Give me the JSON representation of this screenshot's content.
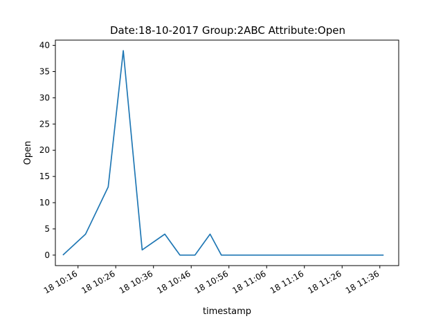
{
  "chart_data": {
    "type": "line",
    "title": "Date:18-10-2017  Group:2ABC Attribute:Open",
    "xlabel": "timestamp",
    "ylabel": "Open",
    "x_ticks": [
      "18 10:16",
      "18 10:26",
      "18 10:36",
      "18 10:46",
      "18 10:56",
      "18 11:06",
      "18 11:16",
      "18 11:26",
      "18 11:36"
    ],
    "y_ticks": [
      "0",
      "5",
      "10",
      "15",
      "20",
      "25",
      "30",
      "35",
      "40"
    ],
    "ylim": [
      -2,
      41
    ],
    "xlim": [
      "2017-10-18 10:10",
      "2017-10-18 11:41"
    ],
    "grid": false,
    "series_color": "#1f77b4",
    "x": [
      "2017-10-18 10:12",
      "2017-10-18 10:18",
      "2017-10-18 10:24",
      "2017-10-18 10:28",
      "2017-10-18 10:33",
      "2017-10-18 10:39",
      "2017-10-18 10:43",
      "2017-10-18 10:47",
      "2017-10-18 10:51",
      "2017-10-18 10:54",
      "2017-10-18 11:00",
      "2017-10-18 11:06",
      "2017-10-18 11:12",
      "2017-10-18 11:18",
      "2017-10-18 11:24",
      "2017-10-18 11:30",
      "2017-10-18 11:36",
      "2017-10-18 11:37"
    ],
    "values": [
      0,
      4,
      13,
      39,
      1,
      4,
      0,
      0,
      4,
      0,
      0,
      0,
      0,
      0,
      0,
      0,
      0,
      0
    ]
  }
}
